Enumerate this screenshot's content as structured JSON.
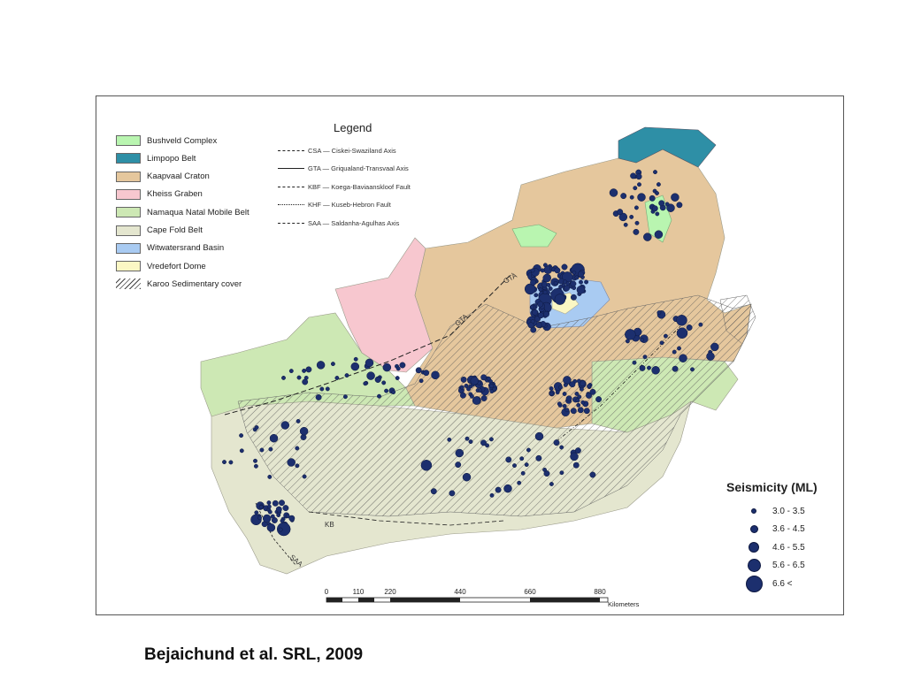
{
  "legend": {
    "title": "Legend",
    "units": [
      {
        "label": "Bushveld Complex",
        "color": "#b9f5b0",
        "pattern": "solid"
      },
      {
        "label": "Limpopo Belt",
        "color": "#2e8fa6",
        "pattern": "solid"
      },
      {
        "label": "Kaapvaal Craton",
        "color": "#e5c79d",
        "pattern": "solid"
      },
      {
        "label": "Kheiss Graben",
        "color": "#f7c7cf",
        "pattern": "solid"
      },
      {
        "label": "Namaqua Natal Mobile Belt",
        "color": "#cde8b4",
        "pattern": "solid"
      },
      {
        "label": "Cape Fold Belt",
        "color": "#e4e6cf",
        "pattern": "solid"
      },
      {
        "label": "Witwatersrand Basin",
        "color": "#a9cbf2",
        "pattern": "solid"
      },
      {
        "label": "Vredefort Dome",
        "color": "#fbf7c4",
        "pattern": "solid"
      },
      {
        "label": "Karoo Sedimentary cover",
        "color": "#ffffff",
        "pattern": "hatch"
      }
    ],
    "lines": [
      {
        "label": "CSA — Ciskei-Swaziland Axis",
        "style": "dash-dot"
      },
      {
        "label": "GTA — Griqualand-Transvaal Axis",
        "style": "arrow"
      },
      {
        "label": "KBF — Koega-Baviaanskloof Fault",
        "style": "dashed"
      },
      {
        "label": "KHF — Kuseb-Hebron Fault",
        "style": "dotted"
      },
      {
        "label": "SAA — Saldanha-Agulhas Axis",
        "style": "arrow-dashed"
      }
    ]
  },
  "map_labels": {
    "gta1": "GTA",
    "gta2": "GTA",
    "kb": "KB",
    "saa": "SAA"
  },
  "seismicity": {
    "title": "Seismicity (ML)",
    "dot_color": "#1c2f6e",
    "classes": [
      {
        "label": "3.0 - 3.5"
      },
      {
        "label": "3.6 - 4.5"
      },
      {
        "label": "4.6 - 5.5"
      },
      {
        "label": "5.6 - 6.5"
      },
      {
        "label": "6.6 <"
      }
    ]
  },
  "scale_bar": {
    "ticks": [
      "0",
      "110",
      "220",
      "440",
      "660",
      "880"
    ],
    "units": "Kilometers"
  },
  "citation": "Bejaichund et al. SRL, 2009"
}
